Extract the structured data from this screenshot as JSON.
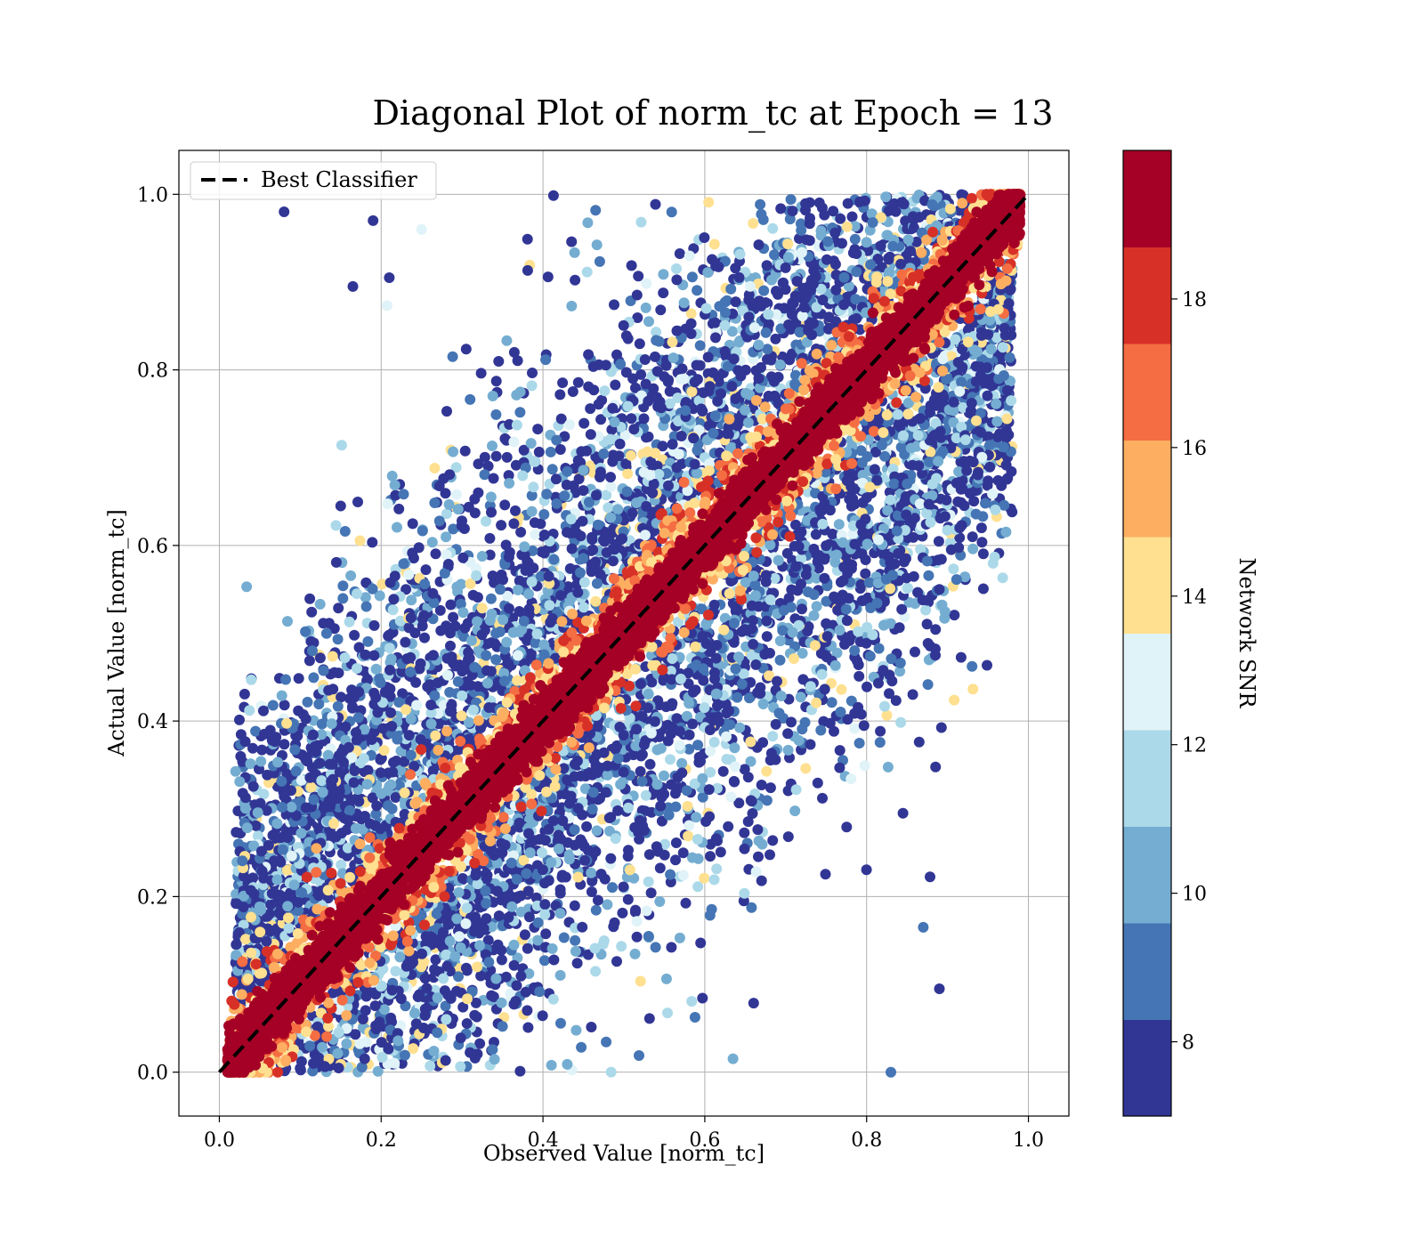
{
  "chart_data": {
    "type": "scatter",
    "title": "Diagonal Plot of norm_tc at Epoch = 13",
    "xlabel": "Observed Value [norm_tc]",
    "ylabel": "Actual Value [norm_tc]",
    "xlim": [
      -0.05,
      1.05
    ],
    "ylim": [
      -0.05,
      1.05
    ],
    "xticks": [
      "0.0",
      "0.2",
      "0.4",
      "0.6",
      "0.8",
      "1.0"
    ],
    "yticks": [
      "0.0",
      "0.2",
      "0.4",
      "0.6",
      "0.8",
      "1.0"
    ],
    "grid": true,
    "legend": {
      "placement": "top-left",
      "entries": [
        {
          "label": "Best Classifier",
          "style": "black dashed line"
        }
      ]
    },
    "reference_line": {
      "name": "Best Classifier",
      "x": [
        0.0,
        1.0
      ],
      "y": [
        0.0,
        1.0
      ],
      "color": "#000000",
      "dash": true
    },
    "colorbar": {
      "label": "Network SNR",
      "range": [
        7.0,
        20.0
      ],
      "ticks": [
        "8",
        "10",
        "12",
        "14",
        "16",
        "18"
      ],
      "tick_values": [
        8,
        10,
        12,
        14,
        16,
        18
      ],
      "bins": [
        {
          "from": 7.0,
          "to": 8.3,
          "color": "#313695"
        },
        {
          "from": 8.3,
          "to": 9.6,
          "color": "#4575b4"
        },
        {
          "from": 9.6,
          "to": 10.9,
          "color": "#74add1"
        },
        {
          "from": 10.9,
          "to": 12.2,
          "color": "#abd9e9"
        },
        {
          "from": 12.2,
          "to": 13.5,
          "color": "#e0f3f8"
        },
        {
          "from": 13.5,
          "to": 14.8,
          "color": "#fee090"
        },
        {
          "from": 14.8,
          "to": 16.1,
          "color": "#fdae61"
        },
        {
          "from": 16.1,
          "to": 17.4,
          "color": "#f46d43"
        },
        {
          "from": 17.4,
          "to": 18.7,
          "color": "#d73027"
        },
        {
          "from": 18.7,
          "to": 20.0,
          "color": "#a50026"
        }
      ]
    },
    "scatter_description": {
      "points_shown": "dense cloud of tens of thousands of points",
      "diagonal_band": {
        "snr": 19.5,
        "x": [
          0.0,
          0.99
        ],
        "y_minus_x_spread": 0.025
      },
      "outliers": {
        "snr_range": [
          7.0,
          14.0
        ],
        "concentration": "low SNR points scattered widely on both sides of the diagonal"
      }
    },
    "outlier_points": [
      {
        "x": 0.08,
        "y": 0.98,
        "snr": 7.5
      },
      {
        "x": 0.19,
        "y": 0.97,
        "snr": 7.5
      },
      {
        "x": 0.21,
        "y": 0.905,
        "snr": 7.5
      },
      {
        "x": 0.165,
        "y": 0.895,
        "snr": 7.5
      },
      {
        "x": 0.25,
        "y": 0.96,
        "snr": 13.0
      },
      {
        "x": 0.15,
        "y": 0.645,
        "snr": 7.5
      },
      {
        "x": 0.115,
        "y": 0.48,
        "snr": 9.0
      },
      {
        "x": 0.17,
        "y": 0.545,
        "snr": 11.5
      },
      {
        "x": 0.17,
        "y": 0.46,
        "snr": 11.5
      },
      {
        "x": 0.135,
        "y": 0.435,
        "snr": 7.5
      },
      {
        "x": 0.16,
        "y": 0.37,
        "snr": 7.5
      },
      {
        "x": 0.12,
        "y": 0.255,
        "snr": 15.5
      },
      {
        "x": 0.915,
        "y": 0.62,
        "snr": 7.5
      },
      {
        "x": 0.89,
        "y": 0.55,
        "snr": 7.5
      },
      {
        "x": 0.885,
        "y": 0.475,
        "snr": 7.5
      },
      {
        "x": 0.87,
        "y": 0.165,
        "snr": 9.0
      },
      {
        "x": 0.89,
        "y": 0.095,
        "snr": 7.5
      },
      {
        "x": 0.83,
        "y": 0.0,
        "snr": 9.0
      },
      {
        "x": 0.845,
        "y": 0.295,
        "snr": 7.5
      },
      {
        "x": 0.85,
        "y": 0.67,
        "snr": 9.0
      }
    ]
  }
}
